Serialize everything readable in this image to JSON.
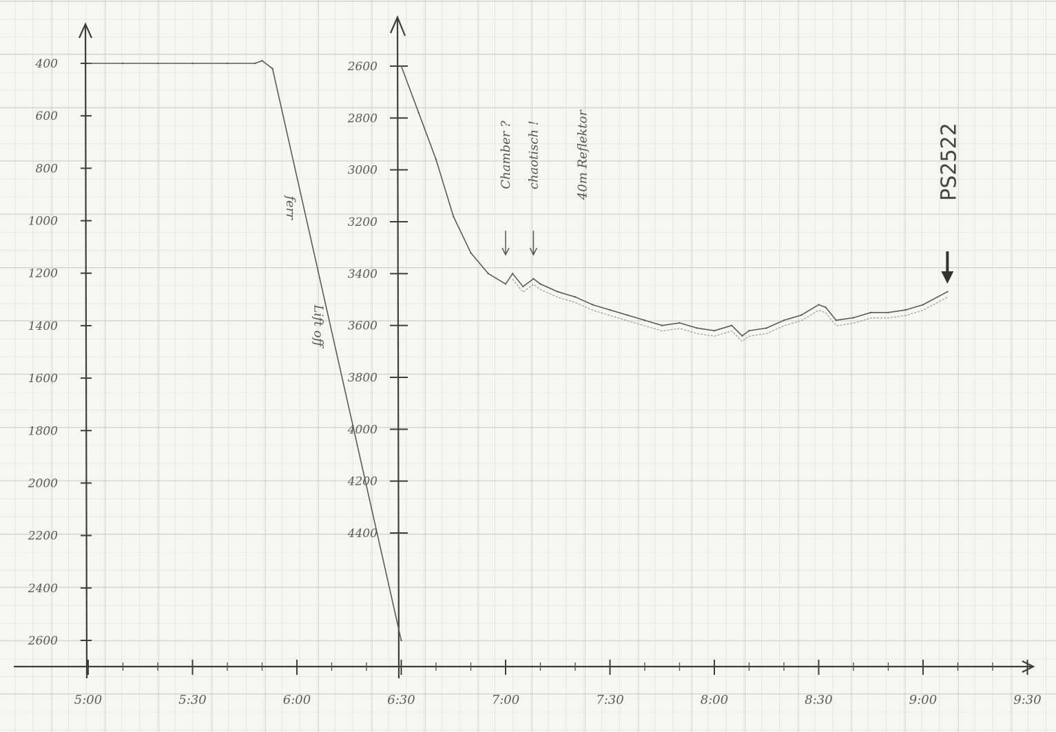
{
  "chart_data": [
    {
      "type": "line",
      "panel": "left",
      "yticks": [
        400,
        600,
        800,
        1000,
        1200,
        1400,
        1600,
        1800,
        2000,
        2200,
        2400,
        2600
      ],
      "ytick_labels": [
        "400",
        "600",
        "800",
        "1000",
        "1200",
        "1400",
        "1600",
        "1800",
        "2000",
        "2200",
        "2400",
        "2600"
      ],
      "ylim": [
        400,
        2600
      ],
      "y_inverted": true,
      "xticks": [
        "5:00",
        "5:30",
        "6:00",
        "6:30"
      ],
      "series": [
        {
          "x": [
            "5:00",
            "5:10",
            "5:20",
            "5:30",
            "5:40",
            "5:48",
            "5:50",
            "5:53",
            "6:30"
          ],
          "y": [
            400,
            400,
            400,
            400,
            400,
            400,
            390,
            420,
            2600
          ]
        }
      ],
      "annotations": [
        {
          "text": "ferr",
          "x": "5:57",
          "y": 950
        },
        {
          "text": "Lift off",
          "x": "6:05",
          "y": 1400
        }
      ]
    },
    {
      "type": "line",
      "panel": "right",
      "yticks": [
        2600,
        2800,
        3000,
        3200,
        3400,
        3600,
        3800,
        4000,
        4200,
        4400
      ],
      "ytick_labels": [
        "2600",
        "2800",
        "3000",
        "3200",
        "3400",
        "3600",
        "3800",
        "4000",
        "4200",
        "4400"
      ],
      "ylim": [
        2600,
        4400
      ],
      "y_inverted": true,
      "xticks": [
        "6:30",
        "7:00",
        "7:30",
        "8:00",
        "8:30",
        "9:00",
        "9:30"
      ],
      "series": [
        {
          "x": [
            "6:30",
            "6:35",
            "6:40",
            "6:45",
            "6:50",
            "6:55",
            "7:00",
            "7:02",
            "7:05",
            "7:08",
            "7:10",
            "7:15",
            "7:20",
            "7:25",
            "7:30",
            "7:35",
            "7:40",
            "7:45",
            "7:50",
            "7:55",
            "8:00",
            "8:05",
            "8:08",
            "8:10",
            "8:15",
            "8:20",
            "8:25",
            "8:30",
            "8:32",
            "8:35",
            "8:40",
            "8:45",
            "8:50",
            "8:55",
            "9:00",
            "9:07"
          ],
          "y": [
            2600,
            2780,
            2960,
            3180,
            3320,
            3400,
            3440,
            3400,
            3450,
            3420,
            3440,
            3470,
            3490,
            3520,
            3540,
            3560,
            3580,
            3600,
            3590,
            3610,
            3620,
            3600,
            3640,
            3620,
            3610,
            3580,
            3560,
            3520,
            3530,
            3580,
            3570,
            3550,
            3550,
            3540,
            3520,
            3470
          ]
        }
      ],
      "annotations": [
        {
          "text": "Chamber ?",
          "x": "7:00"
        },
        {
          "text": "chaotisch !",
          "x": "7:08"
        },
        {
          "text": "40m Reflektor",
          "x": "7:25"
        },
        {
          "text": "PS2522",
          "x": "9:07"
        }
      ]
    }
  ]
}
